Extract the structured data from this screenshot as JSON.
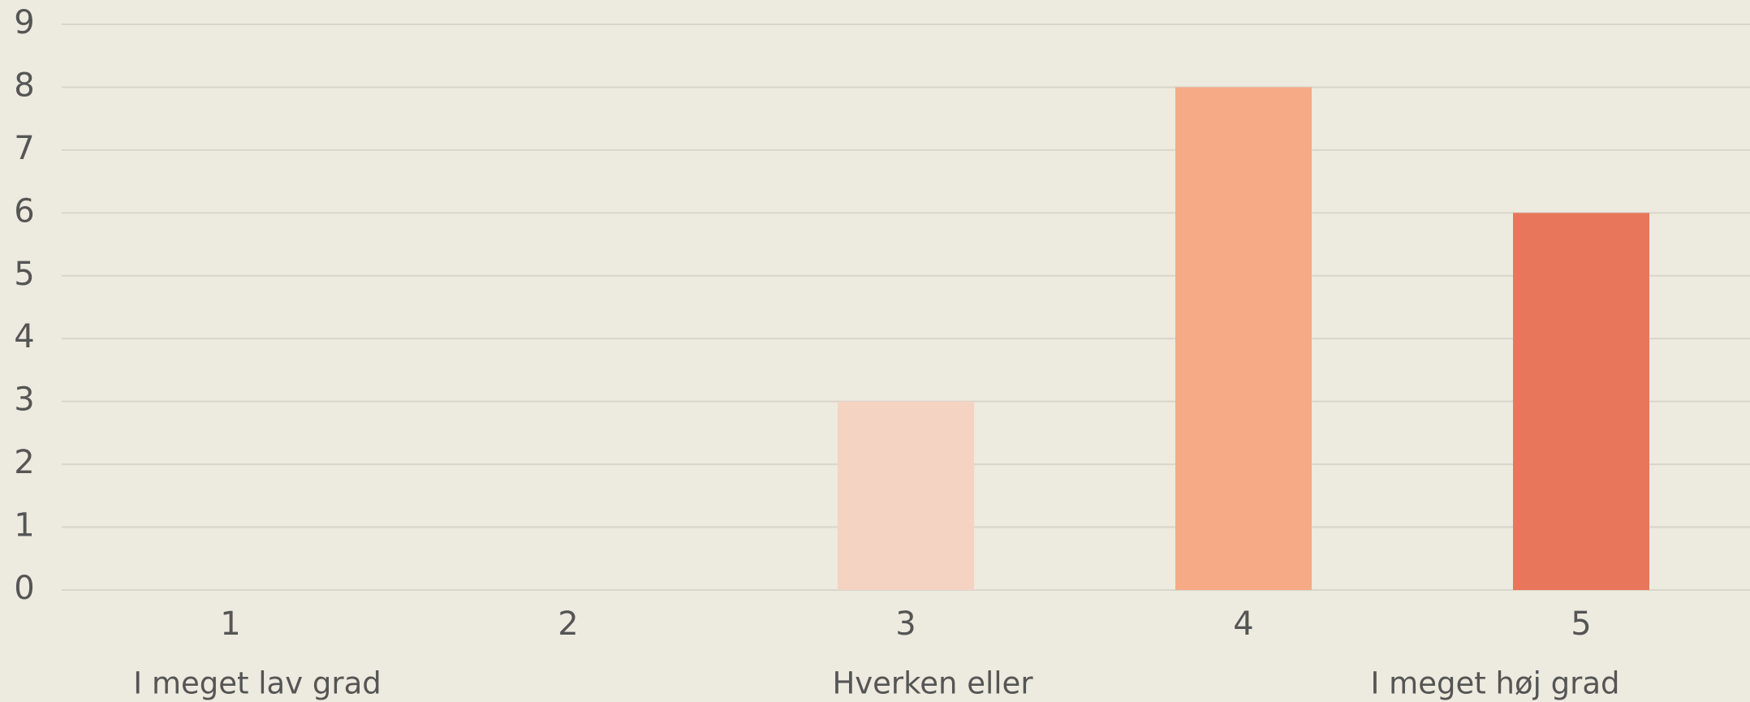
{
  "chart_data": {
    "type": "bar",
    "categories": [
      "1",
      "2",
      "3",
      "4",
      "5"
    ],
    "values": [
      0,
      0,
      3,
      8,
      6
    ],
    "colors": [
      "#f9e6dc",
      "#f7dccd",
      "#f5d3c2",
      "#f6aa86",
      "#e8765b"
    ],
    "annotations": [
      "I meget lav grad",
      null,
      "Hverken eller",
      null,
      "I meget høj grad"
    ],
    "ylim": [
      0,
      9
    ],
    "yticks": [
      0,
      1,
      2,
      3,
      4,
      5,
      6,
      7,
      8,
      9
    ],
    "grid": true
  }
}
